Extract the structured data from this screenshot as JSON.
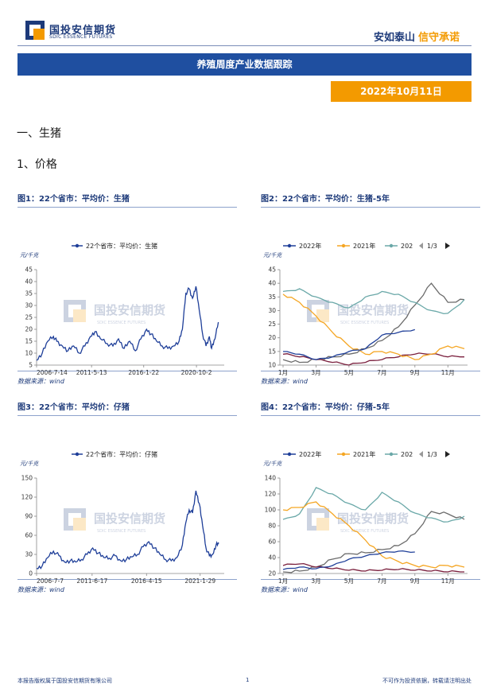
{
  "header": {
    "logo_cn": "国投安信期货",
    "logo_en": "SDIC ESSENCE FUTURES",
    "slogan_part1": "安如泰山",
    "slogan_part2": "信守承诺"
  },
  "report": {
    "title": "养殖周度产业数据跟踪",
    "date": "2022年10月11日"
  },
  "sections": {
    "section1": "一、生猪",
    "section2": "1、价格"
  },
  "watermark": {
    "cn": "国投安信期货",
    "en": "SDIC ESSENCE FUTURES"
  },
  "colors": {
    "brand_blue": "#1f4fa0",
    "brand_orange": "#f39a00",
    "series_2022": "#1f3f99",
    "series_2021": "#f5a623",
    "series_2020": "#6aa8a8",
    "series_extra1": "#7a1f3d",
    "series_extra2": "#6b6b6b"
  },
  "charts": [
    {
      "id": "fig1",
      "title": "图1：22个省市：平均价：生猪",
      "source": "数据来源：wind",
      "unit_label": "元/千克",
      "legend": [
        "22个省市：平均价：生猪"
      ],
      "chart_data": {
        "type": "line",
        "title": "图1：22个省市：平均价：生猪",
        "ylabel": "元/千克",
        "ylim": [
          5,
          45
        ],
        "yticks": [
          5,
          10,
          15,
          20,
          25,
          30,
          35,
          40,
          45
        ],
        "xticks": [
          "2006-7-14",
          "2011-5-13",
          "2016-1-22",
          "2020-10-2"
        ],
        "series": [
          {
            "name": "22个省市：平均价：生猪",
            "x": [
              2006.5,
              2007.0,
              2007.5,
              2008.0,
              2008.3,
              2008.8,
              2009.3,
              2009.8,
              2010.3,
              2010.8,
              2011.3,
              2011.7,
              2012.2,
              2012.8,
              2013.3,
              2013.8,
              2014.3,
              2014.8,
              2015.3,
              2015.8,
              2016.3,
              2016.7,
              2017.2,
              2017.7,
              2018.2,
              2018.7,
              2019.2,
              2019.5,
              2019.8,
              2020.1,
              2020.4,
              2020.7,
              2021.0,
              2021.3,
              2021.6,
              2021.9,
              2022.1,
              2022.4,
              2022.7
            ],
            "values": [
              7,
              10,
              15,
              17,
              15,
              13,
              11,
              13,
              10,
              13,
              17,
              19,
              16,
              14,
              13,
              16,
              12,
              15,
              11,
              16,
              20,
              18,
              15,
              13,
              12,
              13,
              15,
              20,
              35,
              37,
              33,
              38,
              28,
              18,
              13,
              17,
              12,
              16,
              23
            ]
          }
        ]
      }
    },
    {
      "id": "fig2",
      "title": "图2：22个省市：平均价：生猪-5年",
      "source": "数据来源：wind",
      "unit_label": "元/千克",
      "legend": [
        "2022年",
        "2021年",
        "202"
      ],
      "legend_pager": "1/3",
      "chart_data": {
        "type": "line",
        "title": "图2：22个省市：平均价：生猪-5年",
        "ylabel": "元/千克",
        "ylim": [
          10,
          45
        ],
        "yticks": [
          10,
          15,
          20,
          25,
          30,
          35,
          40,
          45
        ],
        "xticks": [
          "1月",
          "3月",
          "5月",
          "7月",
          "9月",
          "11月"
        ],
        "x": [
          1,
          2,
          3,
          4,
          5,
          6,
          7,
          8,
          9,
          10,
          11,
          12
        ],
        "series": [
          {
            "name": "2022年",
            "values": [
              15,
              14,
              12,
              13,
              15,
              16,
              21,
              22,
              23,
              null,
              null,
              null
            ]
          },
          {
            "name": "2021年",
            "values": [
              36,
              33,
              28,
              22,
              17,
              14,
              15,
              14,
              12,
              14,
              17,
              16
            ]
          },
          {
            "name": "202",
            "values": [
              37,
              38,
              35,
              33,
              31,
              35,
              37,
              36,
              33,
              30,
              29,
              34
            ]
          },
          {
            "name": "",
            "values": [
              14,
              13,
              12,
              11,
              10,
              11,
              12,
              13,
              14,
              14,
              13,
              13
            ]
          },
          {
            "name": "",
            "values": [
              12,
              11,
              12,
              13,
              14,
              16,
              19,
              24,
              32,
              40,
              33,
              34
            ]
          }
        ]
      }
    },
    {
      "id": "fig3",
      "title": "图3：22个省市：平均价：仔猪",
      "source": "数据来源：wind",
      "unit_label": "元/千克",
      "legend": [
        "22个省市：平均价：仔猪"
      ],
      "chart_data": {
        "type": "line",
        "title": "图3：22个省市：平均价：仔猪",
        "ylabel": "元/千克",
        "ylim": [
          0,
          150
        ],
        "yticks": [
          0,
          30,
          60,
          90,
          120,
          150
        ],
        "xticks": [
          "2006-7-7",
          "2011-6-17",
          "2016-4-15",
          "2021-1-29"
        ],
        "series": [
          {
            "name": "22个省市：平均价：仔猪",
            "x": [
              2006.5,
              2007.0,
              2007.5,
              2008.0,
              2008.5,
              2009.0,
              2009.5,
              2010.0,
              2010.5,
              2011.0,
              2011.5,
              2012.0,
              2012.5,
              2013.0,
              2013.5,
              2014.0,
              2014.5,
              2015.0,
              2015.5,
              2016.0,
              2016.5,
              2017.0,
              2017.5,
              2018.0,
              2018.5,
              2019.0,
              2019.5,
              2019.8,
              2020.1,
              2020.4,
              2020.7,
              2021.0,
              2021.3,
              2021.6,
              2021.9,
              2022.2,
              2022.5,
              2022.75
            ],
            "values": [
              8,
              12,
              25,
              35,
              28,
              18,
              20,
              18,
              22,
              30,
              40,
              32,
              25,
              24,
              28,
              20,
              22,
              26,
              30,
              42,
              50,
              40,
              30,
              22,
              20,
              25,
              45,
              80,
              100,
              95,
              130,
              110,
              75,
              40,
              28,
              30,
              45,
              47
            ]
          }
        ]
      }
    },
    {
      "id": "fig4",
      "title": "图4：22个省市：平均价：仔猪-5年",
      "source": "数据来源：wind",
      "unit_label": "元/千克",
      "legend": [
        "2022年",
        "2021年",
        "202"
      ],
      "legend_pager": "1/3",
      "chart_data": {
        "type": "line",
        "title": "图4：22个省市：平均价：仔猪-5年",
        "ylabel": "元/千克",
        "ylim": [
          20,
          140
        ],
        "yticks": [
          20,
          40,
          60,
          80,
          100,
          120,
          140
        ],
        "xticks": [
          "1月",
          "3月",
          "5月",
          "7月",
          "9月",
          "11月"
        ],
        "x": [
          1,
          2,
          3,
          4,
          5,
          6,
          7,
          8,
          9,
          10,
          11,
          12
        ],
        "series": [
          {
            "name": "2022年",
            "values": [
              25,
              28,
              26,
              30,
              38,
              42,
              46,
              48,
              47,
              null,
              null,
              null
            ]
          },
          {
            "name": "2021年",
            "values": [
              100,
              103,
              110,
              95,
              80,
              62,
              42,
              35,
              30,
              28,
              30,
              28
            ]
          },
          {
            "name": "202",
            "values": [
              88,
              95,
              128,
              120,
              108,
              100,
              122,
              110,
              96,
              90,
              85,
              92
            ]
          },
          {
            "name": "",
            "values": [
              30,
              32,
              28,
              26,
              24,
              23,
              24,
              25,
              24,
              23,
              22,
              22
            ]
          },
          {
            "name": "",
            "values": [
              22,
              23,
              28,
              38,
              45,
              46,
              50,
              55,
              70,
              98,
              95,
              88
            ]
          }
        ]
      }
    }
  ],
  "footer": {
    "left": "本报告版权属于国投安信期货有限公司",
    "page": "1",
    "right": "不可作为投资依据，转载请注明出处"
  }
}
